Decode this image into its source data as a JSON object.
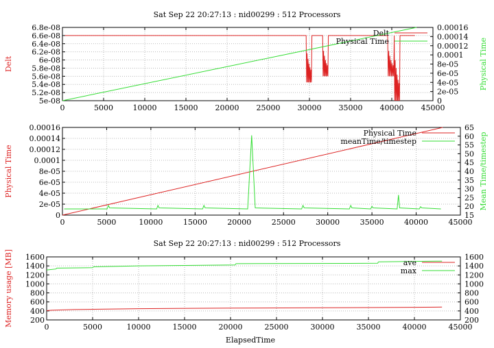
{
  "colors": {
    "red": "#dd2222",
    "green": "#33dd33",
    "grid": "#b8b8b8",
    "axis": "#000000"
  },
  "chart_data": [
    {
      "type": "line",
      "title": "Sat Sep 22 20:27:13 : nid00299 : 512 Processors",
      "xlabel": "",
      "ylabel": "Delt",
      "y2label": "Physical Time",
      "xlim": [
        0,
        45000
      ],
      "ylim": [
        5e-08,
        6.8e-08
      ],
      "y2lim": [
        0,
        0.00016
      ],
      "x_ticks": [
        "0",
        "5000",
        "10000",
        "15000",
        "20000",
        "25000",
        "30000",
        "35000",
        "40000",
        "45000"
      ],
      "y_ticks": [
        "5e-08",
        "5.2e-08",
        "5.4e-08",
        "5.6e-08",
        "5.8e-08",
        "6e-08",
        "6.2e-08",
        "6.4e-08",
        "6.6e-08",
        "6.8e-08"
      ],
      "y2_ticks": [
        "0",
        "2e-05",
        "4e-05",
        "6e-05",
        "8e-05",
        "0.0001",
        "0.00012",
        "0.00014",
        "0.00016"
      ],
      "grid": true,
      "legend_position": "top-right",
      "series": [
        {
          "name": "Delt",
          "axis": "y",
          "color": "red",
          "baseline": 6.6e-08,
          "baseline_x": [
            300,
            42800
          ],
          "dips": [
            {
              "x": [
                29600,
                30300
              ],
              "min": 5.45e-08
            },
            {
              "x": [
                31600,
                32300
              ],
              "min": 5.6e-08
            },
            {
              "x": [
                39500,
                40300
              ],
              "min": 5.6e-08
            },
            {
              "x": [
                40300,
                41000
              ],
              "min": 5e-08
            }
          ]
        },
        {
          "name": "Physical Time",
          "axis": "y2",
          "color": "green",
          "x": [
            0,
            43000
          ],
          "y": [
            0,
            0.00016
          ]
        }
      ]
    },
    {
      "type": "line",
      "title": "",
      "xlabel": "",
      "ylabel": "Physical Time",
      "y2label": "Mean Time/timestep",
      "xlim": [
        0,
        45000
      ],
      "ylim": [
        0,
        0.00016
      ],
      "y2lim": [
        15,
        65
      ],
      "x_ticks": [
        "0",
        "5000",
        "10000",
        "15000",
        "20000",
        "25000",
        "30000",
        "35000",
        "40000",
        "45000"
      ],
      "y_ticks": [
        "0",
        "2e-05",
        "4e-05",
        "6e-05",
        "8e-05",
        "0.0001",
        "0.00012",
        "0.00014",
        "0.00016"
      ],
      "y2_ticks": [
        "15",
        "20",
        "25",
        "30",
        "35",
        "40",
        "45",
        "50",
        "55",
        "60",
        "65"
      ],
      "grid": true,
      "legend_position": "top-right",
      "series": [
        {
          "name": "Physical Time",
          "axis": "y",
          "color": "red",
          "x": [
            0,
            43000
          ],
          "y": [
            0,
            0.00016
          ]
        },
        {
          "name": "meanTime/timestep",
          "axis": "y2",
          "color": "green",
          "baseline": 18.5,
          "baseline_x": [
            200,
            42800
          ],
          "spikes": [
            {
              "x": 5200,
              "y": 20.5
            },
            {
              "x": 10800,
              "y": 20.5
            },
            {
              "x": 16000,
              "y": 20.5
            },
            {
              "x": 21400,
              "y": 60.5
            },
            {
              "x": 27200,
              "y": 20.5
            },
            {
              "x": 32600,
              "y": 20.5
            },
            {
              "x": 35000,
              "y": 20.0
            },
            {
              "x": 38000,
              "y": 26.5
            },
            {
              "x": 40500,
              "y": 19.8
            }
          ]
        }
      ]
    },
    {
      "type": "line",
      "title": "Sat Sep 22 20:27:13 : nid00299 : 512 Processors",
      "xlabel": "ElapsedTime",
      "ylabel": "Memory usage [MB]",
      "y2label": "",
      "xlim": [
        0,
        45000
      ],
      "ylim": [
        200,
        1600
      ],
      "y2lim": [
        200,
        1600
      ],
      "x_ticks": [
        "0",
        "5000",
        "10000",
        "15000",
        "20000",
        "25000",
        "30000",
        "35000",
        "40000",
        "45000"
      ],
      "y_ticks": [
        "200",
        "400",
        "600",
        "800",
        "1000",
        "1200",
        "1400",
        "1600"
      ],
      "y2_ticks": [
        "200",
        "400",
        "600",
        "800",
        "1000",
        "1200",
        "1400",
        "1600"
      ],
      "grid": true,
      "legend_position": "top-right",
      "series": [
        {
          "name": "ave",
          "axis": "y",
          "color": "red",
          "x": [
            0,
            500,
            3000,
            10000,
            20000,
            30000,
            40000,
            43000
          ],
          "y": [
            405,
            415,
            430,
            450,
            462,
            470,
            480,
            485
          ]
        },
        {
          "name": "max",
          "axis": "y",
          "color": "green",
          "x": [
            0,
            1000,
            1100,
            5000,
            5100,
            10000,
            15000,
            20500,
            20600,
            33000,
            36000,
            36100,
            40000,
            43000
          ],
          "y": [
            1310,
            1330,
            1350,
            1360,
            1380,
            1400,
            1410,
            1420,
            1450,
            1455,
            1460,
            1490,
            1500,
            1505
          ]
        }
      ]
    }
  ]
}
